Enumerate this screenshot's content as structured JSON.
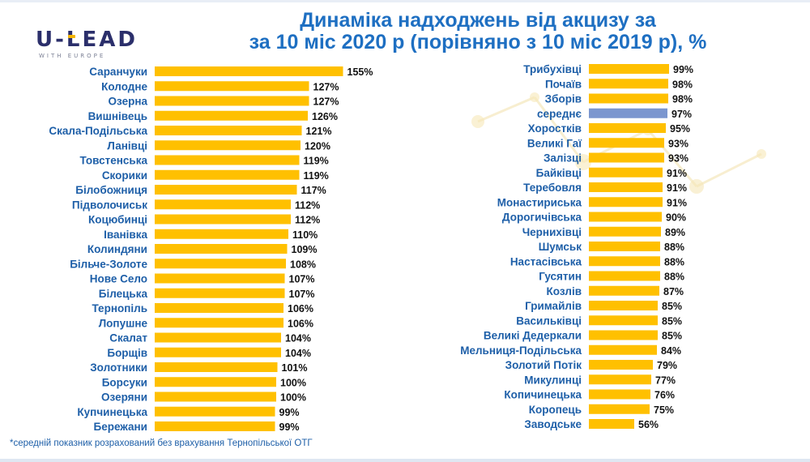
{
  "logo": {
    "main": "U-LEAD",
    "sub": "WITH EUROPE"
  },
  "title": {
    "line1": "Динаміка надходжень від акцизу за",
    "line2": "за 10 міс 2020 р (порівняно з 10 міс 2019 р), %"
  },
  "footnote": "*середній показник розрахований без врахування Тернопільської ОТГ",
  "colors": {
    "bar": "#ffc000",
    "average_bar": "#7b96cf",
    "label": "#1e5fa8",
    "title": "#1e6fc2"
  },
  "chart_data": [
    {
      "type": "bar",
      "orientation": "horizontal",
      "categories": [
        "Саранчуки",
        "Колодне",
        "Озерна",
        "Вишнівець",
        "Скала-Подільська",
        "Ланівці",
        "Товстенська",
        "Скорики",
        "Білобожниця",
        "Підволочиськ",
        "Коцюбинці",
        "Іванівка",
        "Колиндяни",
        "Більче-Золоте",
        "Нове Село",
        "Білецька",
        "Тернопіль",
        "Лопушне",
        "Скалат",
        "Борщів",
        "Золотники",
        "Борсуки",
        "Озеряни",
        "Купчинецька",
        "Бережани"
      ],
      "values": [
        155,
        127,
        127,
        126,
        121,
        120,
        119,
        119,
        117,
        112,
        112,
        110,
        109,
        108,
        107,
        107,
        106,
        106,
        104,
        104,
        101,
        100,
        100,
        99,
        99
      ],
      "labels": [
        "155%",
        "127%",
        "127%",
        "126%",
        "121%",
        "120%",
        "119%",
        "119%",
        "117%",
        "112%",
        "112%",
        "110%",
        "109%",
        "108%",
        "107%",
        "107%",
        "106%",
        "106%",
        "104%",
        "104%",
        "101%",
        "100%",
        "100%",
        "99%",
        "99%"
      ],
      "unit": "%"
    },
    {
      "type": "bar",
      "orientation": "horizontal",
      "categories": [
        "Трибухівці",
        "Почаїв",
        "Зборів",
        "середнє",
        "Хоростків",
        "Великі Гаї",
        "Залізці",
        "Байківці",
        "Теребовля",
        "Монастириська",
        "Дорогичівська",
        "Чернихівці",
        "Шумськ",
        "Настасівська",
        "Гусятин",
        "Козлів",
        "Гримайлів",
        "Васильківці",
        "Великі Дедеркали",
        "Мельниця-Подільська",
        "Золотий Потік",
        "Микулинці",
        "Копичинецька",
        "Коропець",
        "Заводське"
      ],
      "values": [
        99,
        98,
        98,
        97,
        95,
        93,
        93,
        91,
        91,
        91,
        90,
        89,
        88,
        88,
        88,
        87,
        85,
        85,
        85,
        84,
        79,
        77,
        76,
        75,
        56
      ],
      "labels": [
        "99%",
        "98%",
        "98%",
        "97%",
        "95%",
        "93%",
        "93%",
        "91%",
        "91%",
        "91%",
        "90%",
        "89%",
        "88%",
        "88%",
        "88%",
        "87%",
        "85%",
        "85%",
        "85%",
        "84%",
        "79%",
        "77%",
        "76%",
        "75%",
        "56%"
      ],
      "highlight": "середнє",
      "unit": "%"
    }
  ]
}
